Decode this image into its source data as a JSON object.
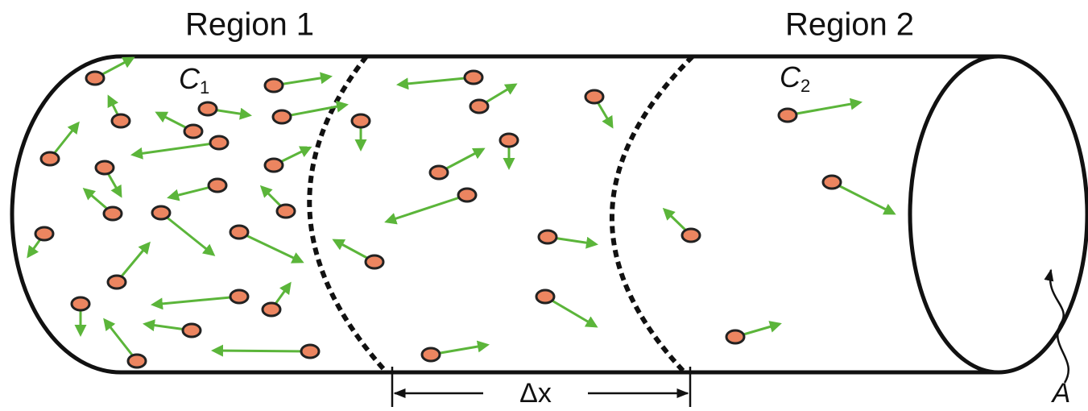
{
  "labels": {
    "region_1": "Region 1",
    "region_2": "Region 2",
    "c1": {
      "symbol": "C",
      "subscript": "1"
    },
    "c2": {
      "symbol": "C",
      "subscript": "2"
    },
    "delta_x": "Δx",
    "area": "A"
  }
}
